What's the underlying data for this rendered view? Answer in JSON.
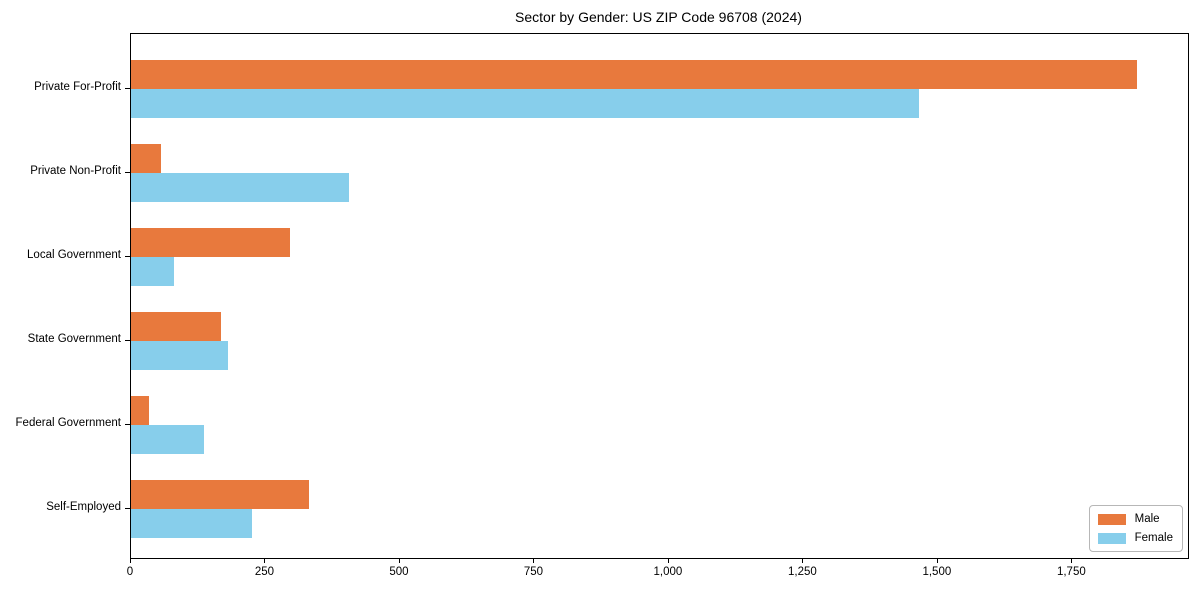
{
  "title": "Sector by Gender: US ZIP Code 96708 (2024)",
  "chart_data": {
    "type": "bar",
    "orientation": "horizontal",
    "title": "Sector by Gender: US ZIP Code 96708 (2024)",
    "categories": [
      "Private For-Profit",
      "Private Non-Profit",
      "Local Government",
      "State Government",
      "Federal Government",
      "Self-Employed"
    ],
    "series": [
      {
        "name": "Male",
        "color": "#E8793D",
        "values": [
          1870,
          55,
          295,
          168,
          33,
          330
        ]
      },
      {
        "name": "Female",
        "color": "#87CEEB",
        "values": [
          1465,
          405,
          80,
          180,
          135,
          225
        ]
      }
    ],
    "xlim": [
      0,
      1965
    ],
    "xticks": [
      0,
      250,
      500,
      750,
      1000,
      1250,
      1500,
      1750
    ],
    "xtick_labels": [
      "0",
      "250",
      "500",
      "750",
      "1,000",
      "1,250",
      "1,500",
      "1,750"
    ],
    "xlabel": "",
    "ylabel": "",
    "grid": false,
    "legend_position": "lower right"
  }
}
